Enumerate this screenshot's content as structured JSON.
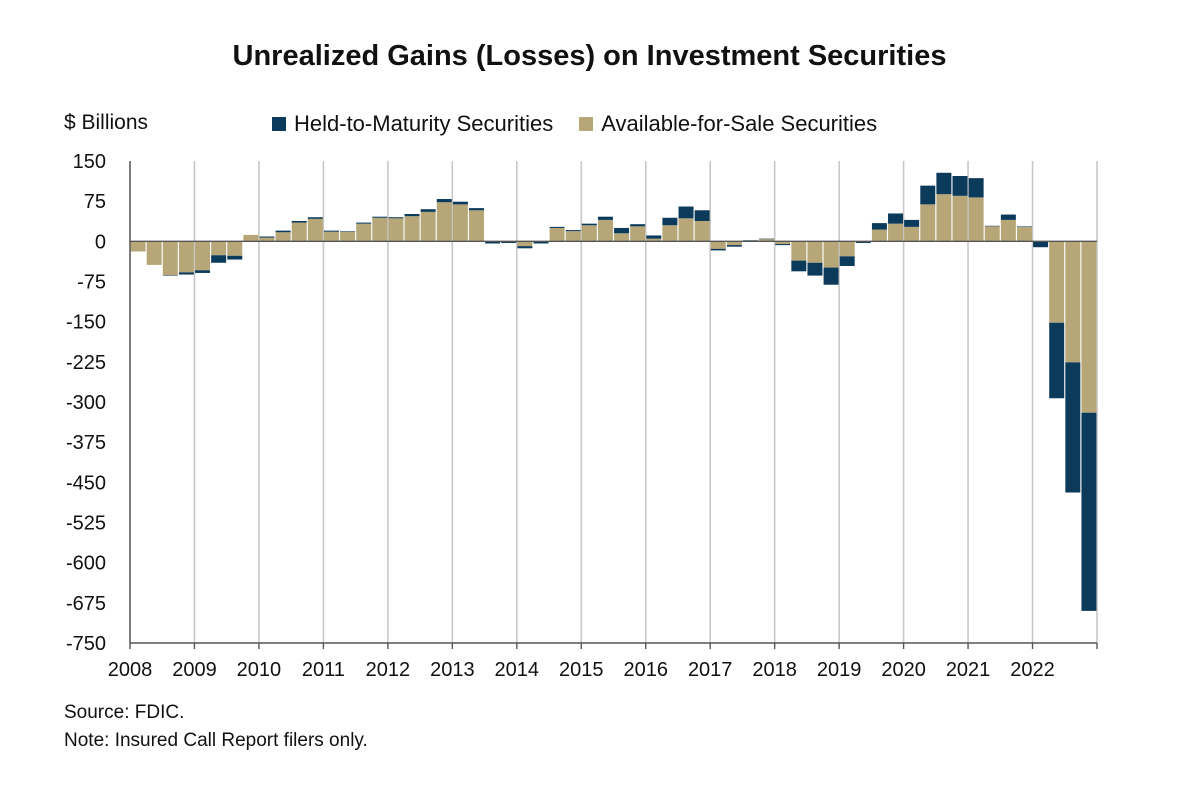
{
  "chart_data": {
    "type": "bar",
    "stacked": true,
    "title": "Unrealized Gains (Losses) on Investment Securities",
    "ylabel": "$ Billions",
    "xlabel": "",
    "ylim": [
      -750,
      150
    ],
    "yticks": [
      150,
      75,
      0,
      -75,
      -150,
      -225,
      -300,
      -375,
      -450,
      -525,
      -600,
      -675,
      -750
    ],
    "year_labels": [
      "2008",
      "2009",
      "2010",
      "2011",
      "2012",
      "2013",
      "2014",
      "2015",
      "2016",
      "2017",
      "2018",
      "2019",
      "2020",
      "2021",
      "2022"
    ],
    "legend_position": "top",
    "categories": [
      "2008Q1",
      "2008Q2",
      "2008Q3",
      "2008Q4",
      "2009Q1",
      "2009Q2",
      "2009Q3",
      "2009Q4",
      "2010Q1",
      "2010Q2",
      "2010Q3",
      "2010Q4",
      "2011Q1",
      "2011Q2",
      "2011Q3",
      "2011Q4",
      "2012Q1",
      "2012Q2",
      "2012Q3",
      "2012Q4",
      "2013Q1",
      "2013Q2",
      "2013Q3",
      "2013Q4",
      "2014Q1",
      "2014Q2",
      "2014Q3",
      "2014Q4",
      "2015Q1",
      "2015Q2",
      "2015Q3",
      "2015Q4",
      "2016Q1",
      "2016Q2",
      "2016Q3",
      "2016Q4",
      "2017Q1",
      "2017Q2",
      "2017Q3",
      "2017Q4",
      "2018Q1",
      "2018Q2",
      "2018Q3",
      "2018Q4",
      "2019Q1",
      "2019Q2",
      "2019Q3",
      "2019Q4",
      "2020Q1",
      "2020Q2",
      "2020Q3",
      "2020Q4",
      "2021Q1",
      "2021Q2",
      "2021Q3",
      "2021Q4",
      "2022Q1",
      "2022Q2",
      "2022Q3",
      "2022Q4"
    ],
    "series": [
      {
        "name": "Held-to-Maturity Securities",
        "color": "#0b3a5b",
        "values": [
          0,
          0,
          -1,
          -4,
          -5,
          -14,
          -7,
          0,
          2,
          3,
          3,
          3,
          2,
          1,
          2,
          2,
          2,
          4,
          5,
          6,
          5,
          4,
          -4,
          -3,
          -4,
          -3,
          2,
          2,
          3,
          6,
          10,
          4,
          6,
          14,
          22,
          20,
          -3,
          -3,
          1,
          1,
          -2,
          -20,
          -24,
          -32,
          -18,
          -2,
          12,
          19,
          13,
          35,
          40,
          37,
          36,
          1,
          10,
          1,
          -11,
          -141,
          -243,
          -370
        ]
      },
      {
        "name": "Available-for-Sale Securities",
        "color": "#b7a677",
        "values": [
          -19,
          -44,
          -63,
          -58,
          -54,
          -26,
          -27,
          12,
          7,
          17,
          35,
          42,
          18,
          18,
          33,
          44,
          43,
          47,
          55,
          73,
          69,
          58,
          0,
          0,
          -9,
          -1,
          25,
          19,
          30,
          40,
          15,
          28,
          5,
          30,
          43,
          38,
          -14,
          -7,
          1,
          4,
          -5,
          -36,
          -40,
          -49,
          -28,
          -1,
          22,
          33,
          27,
          69,
          88,
          85,
          82,
          28,
          40,
          27,
          0,
          -152,
          -226,
          -320
        ]
      }
    ]
  },
  "legend": {
    "hold_label": "Held-to-Maturity Securities",
    "afs_label": "Available-for-Sale Securities"
  },
  "notes": {
    "source": "Source: FDIC.",
    "note": "Note: Insured Call Report filers only."
  }
}
